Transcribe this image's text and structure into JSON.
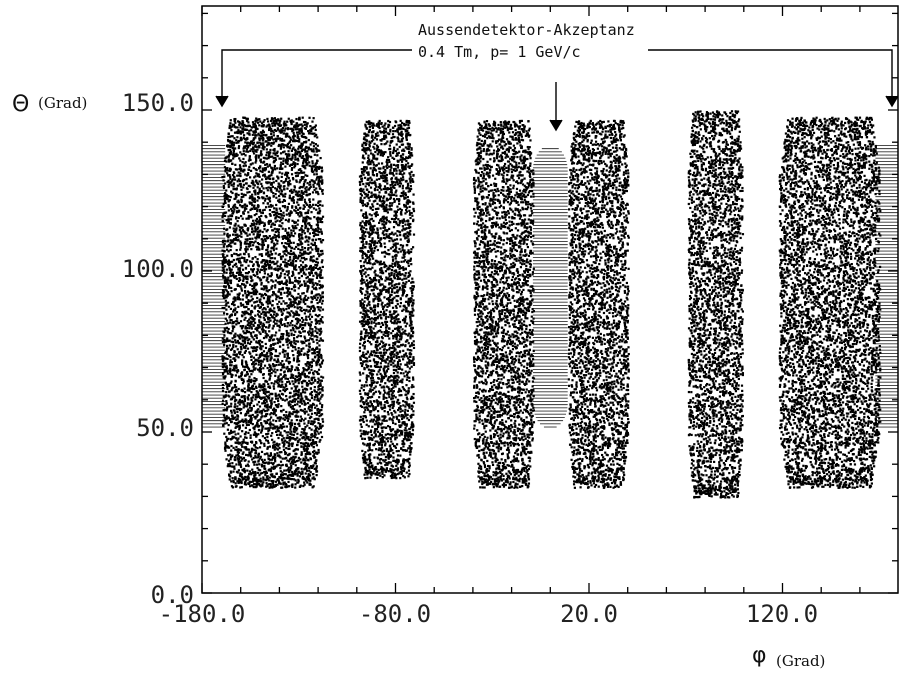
{
  "chart_data": {
    "type": "scatter",
    "xlabel_symbol": "φ",
    "xlabel_unit": "(Grad)",
    "ylabel_symbol": "Θ",
    "ylabel_unit": "(Grad)",
    "xlim": [
      -180,
      180
    ],
    "ylim": [
      0,
      180
    ],
    "xticks": [
      -180,
      -80,
      20,
      120
    ],
    "xtick_labels": [
      "-180.0",
      "-80.0",
      "20.0",
      "120.0"
    ],
    "yticks": [
      0,
      50,
      100,
      150
    ],
    "ytick_labels": [
      "0.0",
      "50.0",
      "100.0",
      "150.0"
    ],
    "grid": false,
    "annotation": {
      "line1": "Aussendetektor-Akzeptanz",
      "line2": "0.4 Tm,  p= 1 GeV/c",
      "arrow_targets_phi": [
        -172,
        0,
        176
      ]
    },
    "scatter_bands": [
      {
        "phi_min": -170,
        "phi_max": -118,
        "theta_min": 33,
        "theta_max": 148
      },
      {
        "phi_min": -99,
        "phi_max": -71,
        "theta_min": 36,
        "theta_max": 147
      },
      {
        "phi_min": -40,
        "phi_max": -9,
        "theta_min": 33,
        "theta_max": 147
      },
      {
        "phi_min": 9,
        "phi_max": 40,
        "theta_min": 33,
        "theta_max": 147
      },
      {
        "phi_min": 71,
        "phi_max": 99,
        "theta_min": 30,
        "theta_max": 150
      },
      {
        "phi_min": 118,
        "phi_max": 170,
        "theta_min": 33,
        "theta_max": 148
      }
    ],
    "acceptance_regions": [
      {
        "phi_min": -180,
        "phi_max": -168,
        "theta_min": 51,
        "theta_max": 139
      },
      {
        "phi_min": -9,
        "phi_max": 9,
        "theta_min": 51,
        "theta_max": 139
      },
      {
        "phi_min": 168,
        "phi_max": 180,
        "theta_min": 51,
        "theta_max": 139
      }
    ]
  }
}
